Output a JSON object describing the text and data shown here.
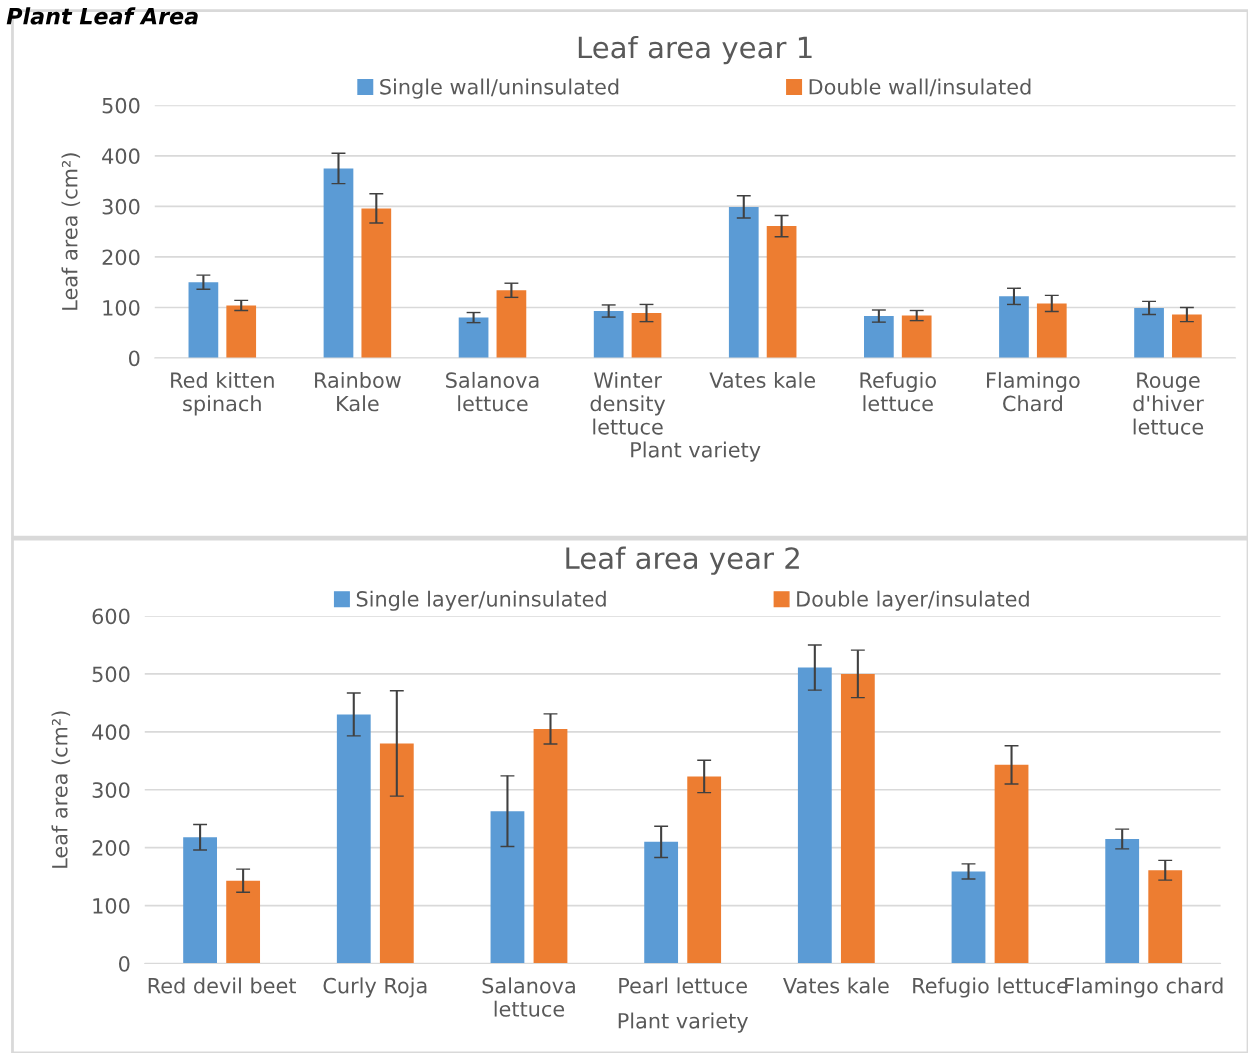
{
  "chart_data": [
    {
      "type": "bar",
      "title": "Leaf area year 1",
      "xlabel": "Plant variety",
      "ylabel": "Leaf area (cm²)",
      "annotations": [
        "Plant Leaf Area"
      ],
      "categories": [
        "Red kitten\nspinach",
        "Rainbow\nKale",
        "Salanova\nlettuce",
        "Winter\ndensity\nlettuce",
        "Vates kale",
        "Refugio\nlettuce",
        "Flamingo\nChard",
        "Rouge\nd'hiver\nlettuce"
      ],
      "series": [
        {
          "name": "Single wall/uninsulated",
          "color": "#5b9bd5",
          "values": [
            150,
            375,
            80,
            93,
            299,
            83,
            122,
            99
          ],
          "errors": [
            14,
            30,
            10,
            12,
            22,
            12,
            16,
            13
          ]
        },
        {
          "name": "Double wall/insulated",
          "color": "#ed7d31",
          "values": [
            104,
            296,
            134,
            89,
            261,
            84,
            108,
            86
          ],
          "errors": [
            10,
            29,
            14,
            17,
            21,
            10,
            16,
            14
          ]
        }
      ],
      "ylim": [
        0,
        500
      ],
      "yticks": [
        0,
        100,
        200,
        300,
        400,
        500
      ],
      "grid": "y",
      "legend": "top"
    },
    {
      "type": "bar",
      "title": "Leaf area year 2",
      "xlabel": "Plant variety",
      "ylabel": "Leaf area (cm²)",
      "categories": [
        "Red devil beet",
        "Curly Roja",
        "Salanova\nlettuce",
        "Pearl lettuce",
        "Vates kale",
        "Refugio lettuce",
        "Flamingo chard"
      ],
      "series": [
        {
          "name": "Single layer/uninsulated",
          "color": "#5b9bd5",
          "values": [
            218,
            430,
            263,
            210,
            511,
            159,
            215
          ],
          "errors": [
            22,
            37,
            61,
            27,
            39,
            13,
            17
          ]
        },
        {
          "name": "Double layer/insulated",
          "color": "#ed7d31",
          "values": [
            143,
            380,
            405,
            323,
            500,
            343,
            161
          ],
          "errors": [
            20,
            91,
            26,
            28,
            41,
            33,
            17
          ]
        }
      ],
      "ylim": [
        0,
        600
      ],
      "yticks": [
        0,
        100,
        200,
        300,
        400,
        500,
        600
      ],
      "grid": "y",
      "legend": "top"
    }
  ]
}
